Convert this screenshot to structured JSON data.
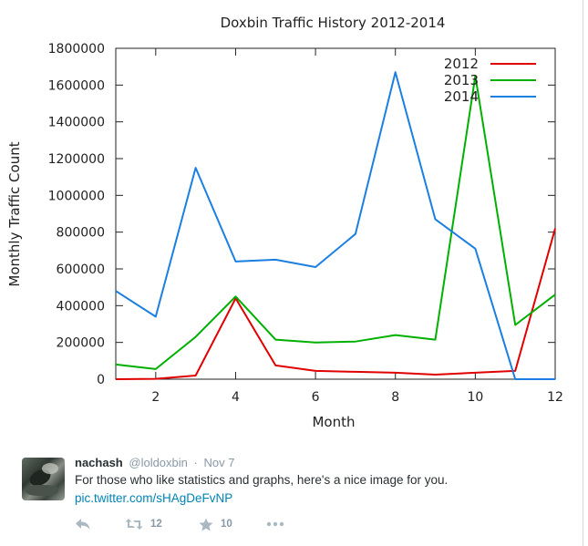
{
  "chart_data": {
    "type": "line",
    "title": "Doxbin Traffic History 2012-2014",
    "xlabel": "Month",
    "ylabel": "Monthly Traffic Count",
    "x": [
      1,
      2,
      3,
      4,
      5,
      6,
      7,
      8,
      9,
      10,
      11,
      12
    ],
    "xlim": [
      1,
      12
    ],
    "ylim": [
      0,
      1800000
    ],
    "x_ticks": [
      2,
      4,
      6,
      8,
      10,
      12
    ],
    "y_ticks": [
      0,
      200000,
      400000,
      600000,
      800000,
      1000000,
      1200000,
      1400000,
      1600000,
      1800000
    ],
    "grid": false,
    "legend_position": "top-right",
    "series": [
      {
        "name": "2012",
        "color": "#e00000",
        "values": [
          0,
          2000,
          20000,
          440000,
          75000,
          45000,
          40000,
          35000,
          25000,
          35000,
          45000,
          820000
        ]
      },
      {
        "name": "2013",
        "color": "#00b000",
        "values": [
          80000,
          55000,
          230000,
          450000,
          215000,
          200000,
          205000,
          240000,
          215000,
          1650000,
          295000,
          460000
        ]
      },
      {
        "name": "2014",
        "color": "#1a7fe0",
        "values": [
          480000,
          340000,
          1150000,
          640000,
          650000,
          610000,
          790000,
          1670000,
          870000,
          710000,
          0,
          0
        ]
      }
    ]
  },
  "tweet": {
    "name": "nachash",
    "handle": "@loldoxbin",
    "separator": "·",
    "time": "Nov 7",
    "text": "For those who like statistics and graphs, here's a nice image for you.",
    "link": "pic.twitter.com/sHAgDeFvNP",
    "retweets": "12",
    "favorites": "10"
  }
}
